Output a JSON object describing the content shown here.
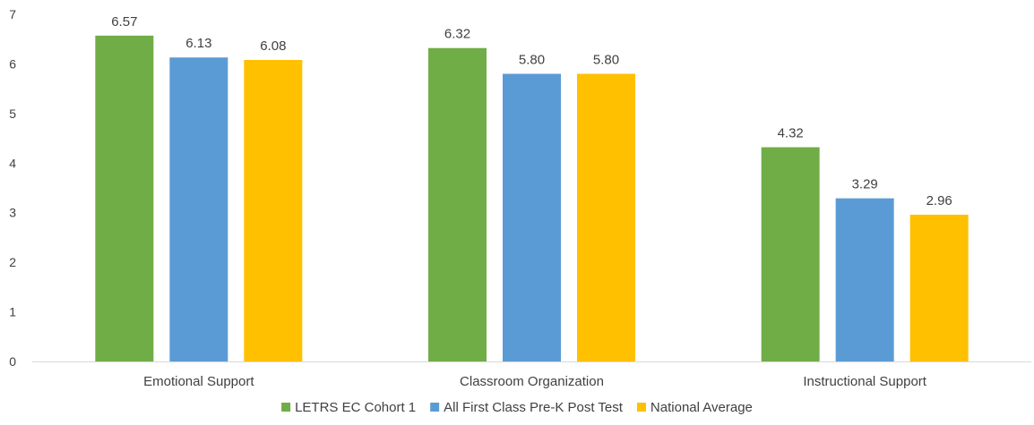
{
  "chart_data": {
    "type": "bar",
    "categories": [
      "Emotional Support",
      "Classroom Organization",
      "Instructional Support"
    ],
    "series": [
      {
        "name": "LETRS EC Cohort 1",
        "values": [
          6.57,
          6.32,
          4.32
        ],
        "labels": [
          "6.57",
          "6.32",
          "4.32"
        ],
        "color": "#70AD47"
      },
      {
        "name": "All First Class Pre-K Post Test",
        "values": [
          6.13,
          5.8,
          3.29
        ],
        "labels": [
          "6.13",
          "5.80",
          "3.29"
        ],
        "color": "#5B9BD5"
      },
      {
        "name": "National Average",
        "values": [
          6.08,
          5.8,
          2.96
        ],
        "labels": [
          "6.08",
          "5.80",
          "2.96"
        ],
        "color": "#FFC000"
      }
    ],
    "y_ticks": [
      "0",
      "1",
      "2",
      "3",
      "4",
      "5",
      "6",
      "7"
    ],
    "ylim": [
      0,
      7
    ],
    "grid": false,
    "legend_position": "bottom",
    "axis_color": "#D9D9D9"
  }
}
